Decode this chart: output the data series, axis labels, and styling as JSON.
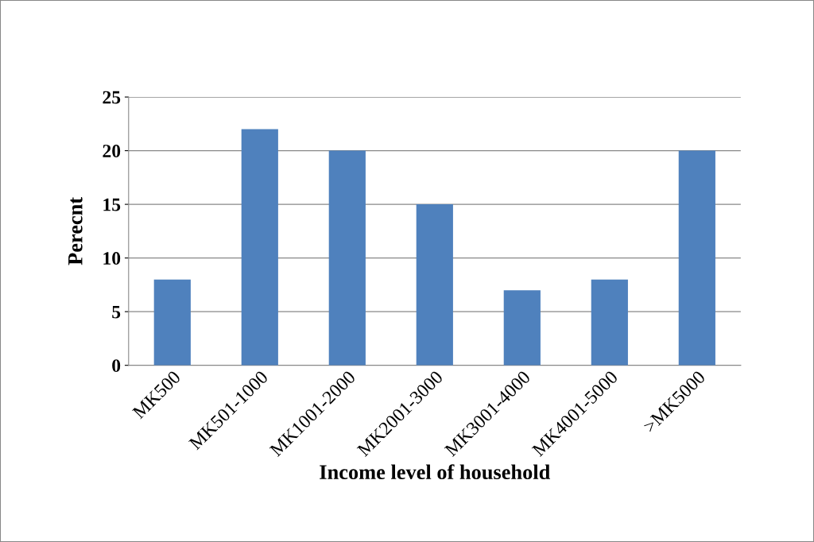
{
  "chart_data": {
    "type": "bar",
    "xlabel": "Income level of household",
    "ylabel": "Perecnt",
    "categories": [
      "MK500",
      "MK501-1000",
      "MK1001-2000",
      "MK2001-3000",
      "MK3001-4000",
      "MK4001-5000",
      ">MK5000"
    ],
    "values": [
      8,
      22,
      20,
      15,
      7,
      8,
      20
    ],
    "color": "#4f81bd",
    "ylim": [
      0,
      25
    ],
    "yticks": [
      0,
      5,
      10,
      15,
      20,
      25
    ],
    "grid": "y",
    "legend": false
  }
}
